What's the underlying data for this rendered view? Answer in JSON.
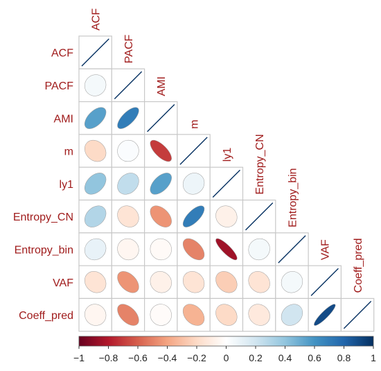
{
  "chart_data": {
    "type": "heatmap",
    "variables": [
      "ACF",
      "PACF",
      "AMI",
      "m",
      "ly1",
      "Entropy_CN",
      "Entropy_bin",
      "VAF",
      "Coeff_pred"
    ],
    "matrix": [
      [
        1.0,
        0.05,
        0.55,
        -0.2,
        0.4,
        0.3,
        0.1,
        -0.15,
        -0.05
      ],
      [
        0.05,
        1.0,
        0.7,
        0.02,
        0.25,
        -0.15,
        -0.05,
        -0.45,
        -0.5
      ],
      [
        0.55,
        0.7,
        1.0,
        -0.7,
        0.55,
        -0.45,
        -0.03,
        -0.08,
        -0.02
      ],
      [
        -0.2,
        0.02,
        -0.7,
        1.0,
        0.08,
        0.7,
        -0.5,
        -0.15,
        -0.35
      ],
      [
        0.4,
        0.25,
        0.55,
        0.08,
        1.0,
        -0.08,
        -0.85,
        -0.25,
        -0.2
      ],
      [
        0.3,
        -0.15,
        -0.45,
        0.7,
        -0.08,
        1.0,
        0.05,
        -0.15,
        -0.12
      ],
      [
        0.1,
        -0.05,
        -0.03,
        -0.5,
        -0.85,
        0.05,
        1.0,
        0.05,
        0.2
      ],
      [
        -0.15,
        -0.45,
        -0.08,
        -0.15,
        -0.25,
        -0.15,
        0.05,
        1.0,
        0.9
      ],
      [
        -0.05,
        -0.5,
        -0.02,
        -0.35,
        -0.2,
        -0.12,
        0.2,
        0.9,
        1.0
      ]
    ],
    "colorbar": {
      "min": -1,
      "max": 1,
      "ticks": [
        "−1",
        "−0.8",
        "−0.6",
        "−0.4",
        "−0.2",
        "0",
        "0.2",
        "0.4",
        "0.6",
        "0.8",
        "1"
      ],
      "colors": [
        "#67001f",
        "#b2182b",
        "#d6604d",
        "#f4a582",
        "#fddbc7",
        "#ffffff",
        "#d1e5f0",
        "#92c5de",
        "#4393c3",
        "#2166ac",
        "#053061"
      ]
    },
    "label_color": "#a01c1c",
    "grid_color": "#c8c8c8"
  }
}
